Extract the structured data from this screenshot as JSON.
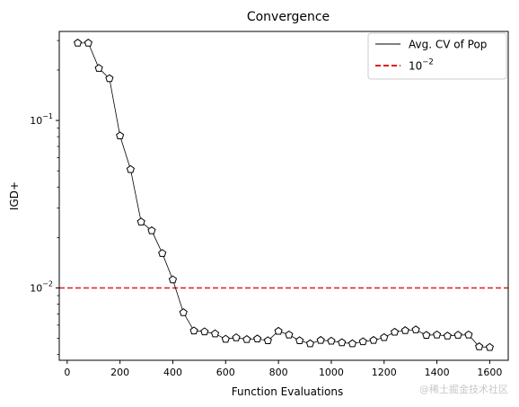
{
  "chart_data": {
    "type": "line",
    "title": "Convergence",
    "xlabel": "Function Evaluations",
    "ylabel": "IGD+",
    "xlim": [
      -30,
      1670
    ],
    "ylim": [
      0.0037,
      0.34
    ],
    "yscale": "log",
    "grid": false,
    "legend_placement": "top-right",
    "x_ticks": [
      0,
      200,
      400,
      600,
      800,
      1000,
      1200,
      1400,
      1600
    ],
    "y_ticks": [
      {
        "value": 0.1,
        "base": "10",
        "exp": "−1"
      },
      {
        "value": 0.01,
        "base": "10",
        "exp": "−2"
      }
    ],
    "series": [
      {
        "name": "Avg. CV of Pop",
        "color": "#000000",
        "marker": "pentagon",
        "x": [
          40,
          80,
          120,
          160,
          200,
          240,
          280,
          320,
          360,
          400,
          440,
          480,
          520,
          560,
          600,
          640,
          680,
          720,
          760,
          800,
          840,
          880,
          920,
          960,
          1000,
          1040,
          1080,
          1120,
          1160,
          1200,
          1240,
          1280,
          1320,
          1360,
          1400,
          1440,
          1480,
          1520,
          1560,
          1600
        ],
        "y": [
          0.29,
          0.29,
          0.205,
          0.178,
          0.081,
          0.051,
          0.0248,
          0.022,
          0.0161,
          0.0112,
          0.00713,
          0.00555,
          0.00548,
          0.00533,
          0.00495,
          0.00505,
          0.00493,
          0.00497,
          0.00485,
          0.00552,
          0.00525,
          0.00485,
          0.00465,
          0.00487,
          0.00482,
          0.00472,
          0.00465,
          0.00478,
          0.00487,
          0.00506,
          0.00545,
          0.00557,
          0.00563,
          0.00522,
          0.00525,
          0.00517,
          0.00523,
          0.00525,
          0.00446,
          0.00442
        ]
      }
    ],
    "reference_line": {
      "name_base": "10",
      "name_exp": "−2",
      "value": 0.01,
      "color": "#e31a1c",
      "style": "dashed"
    }
  },
  "watermark": "@稀土掘金技术社区"
}
